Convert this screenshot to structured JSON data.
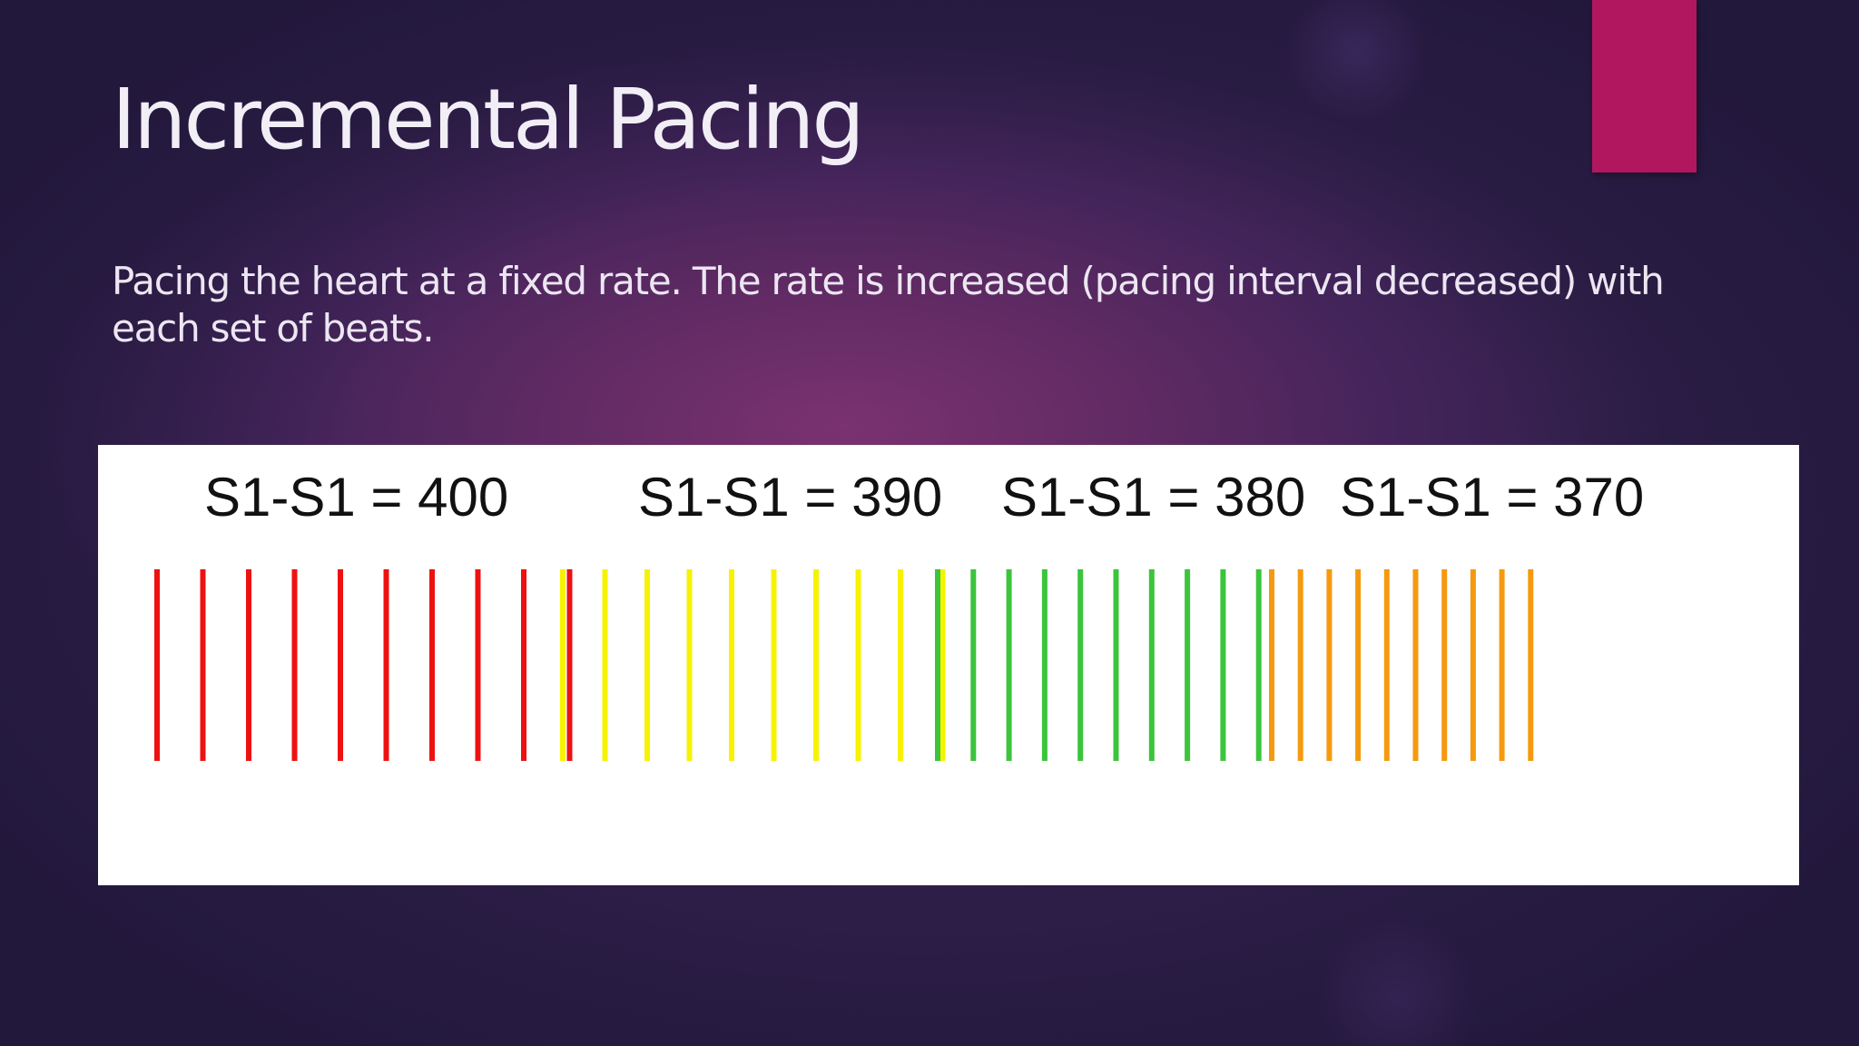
{
  "slide": {
    "title": "Incremental Pacing",
    "body_part1": "Pacing the heart at a fixed rate. The rate is increased (pacing interval decreased) with each ",
    "body_part2": "set of beats.",
    "accent_color": "#b0175f"
  },
  "figure": {
    "groups": [
      {
        "label": "S1-S1 = 400",
        "color": "#ee1111",
        "beats": 10
      },
      {
        "label": "S1-S1 = 390",
        "color": "#f7f200",
        "beats": 10
      },
      {
        "label": "S1-S1 = 380",
        "color": "#3cc43c",
        "beats": 10
      },
      {
        "label": "S1-S1 = 370",
        "color": "#f59a10",
        "beats": 10
      }
    ]
  }
}
